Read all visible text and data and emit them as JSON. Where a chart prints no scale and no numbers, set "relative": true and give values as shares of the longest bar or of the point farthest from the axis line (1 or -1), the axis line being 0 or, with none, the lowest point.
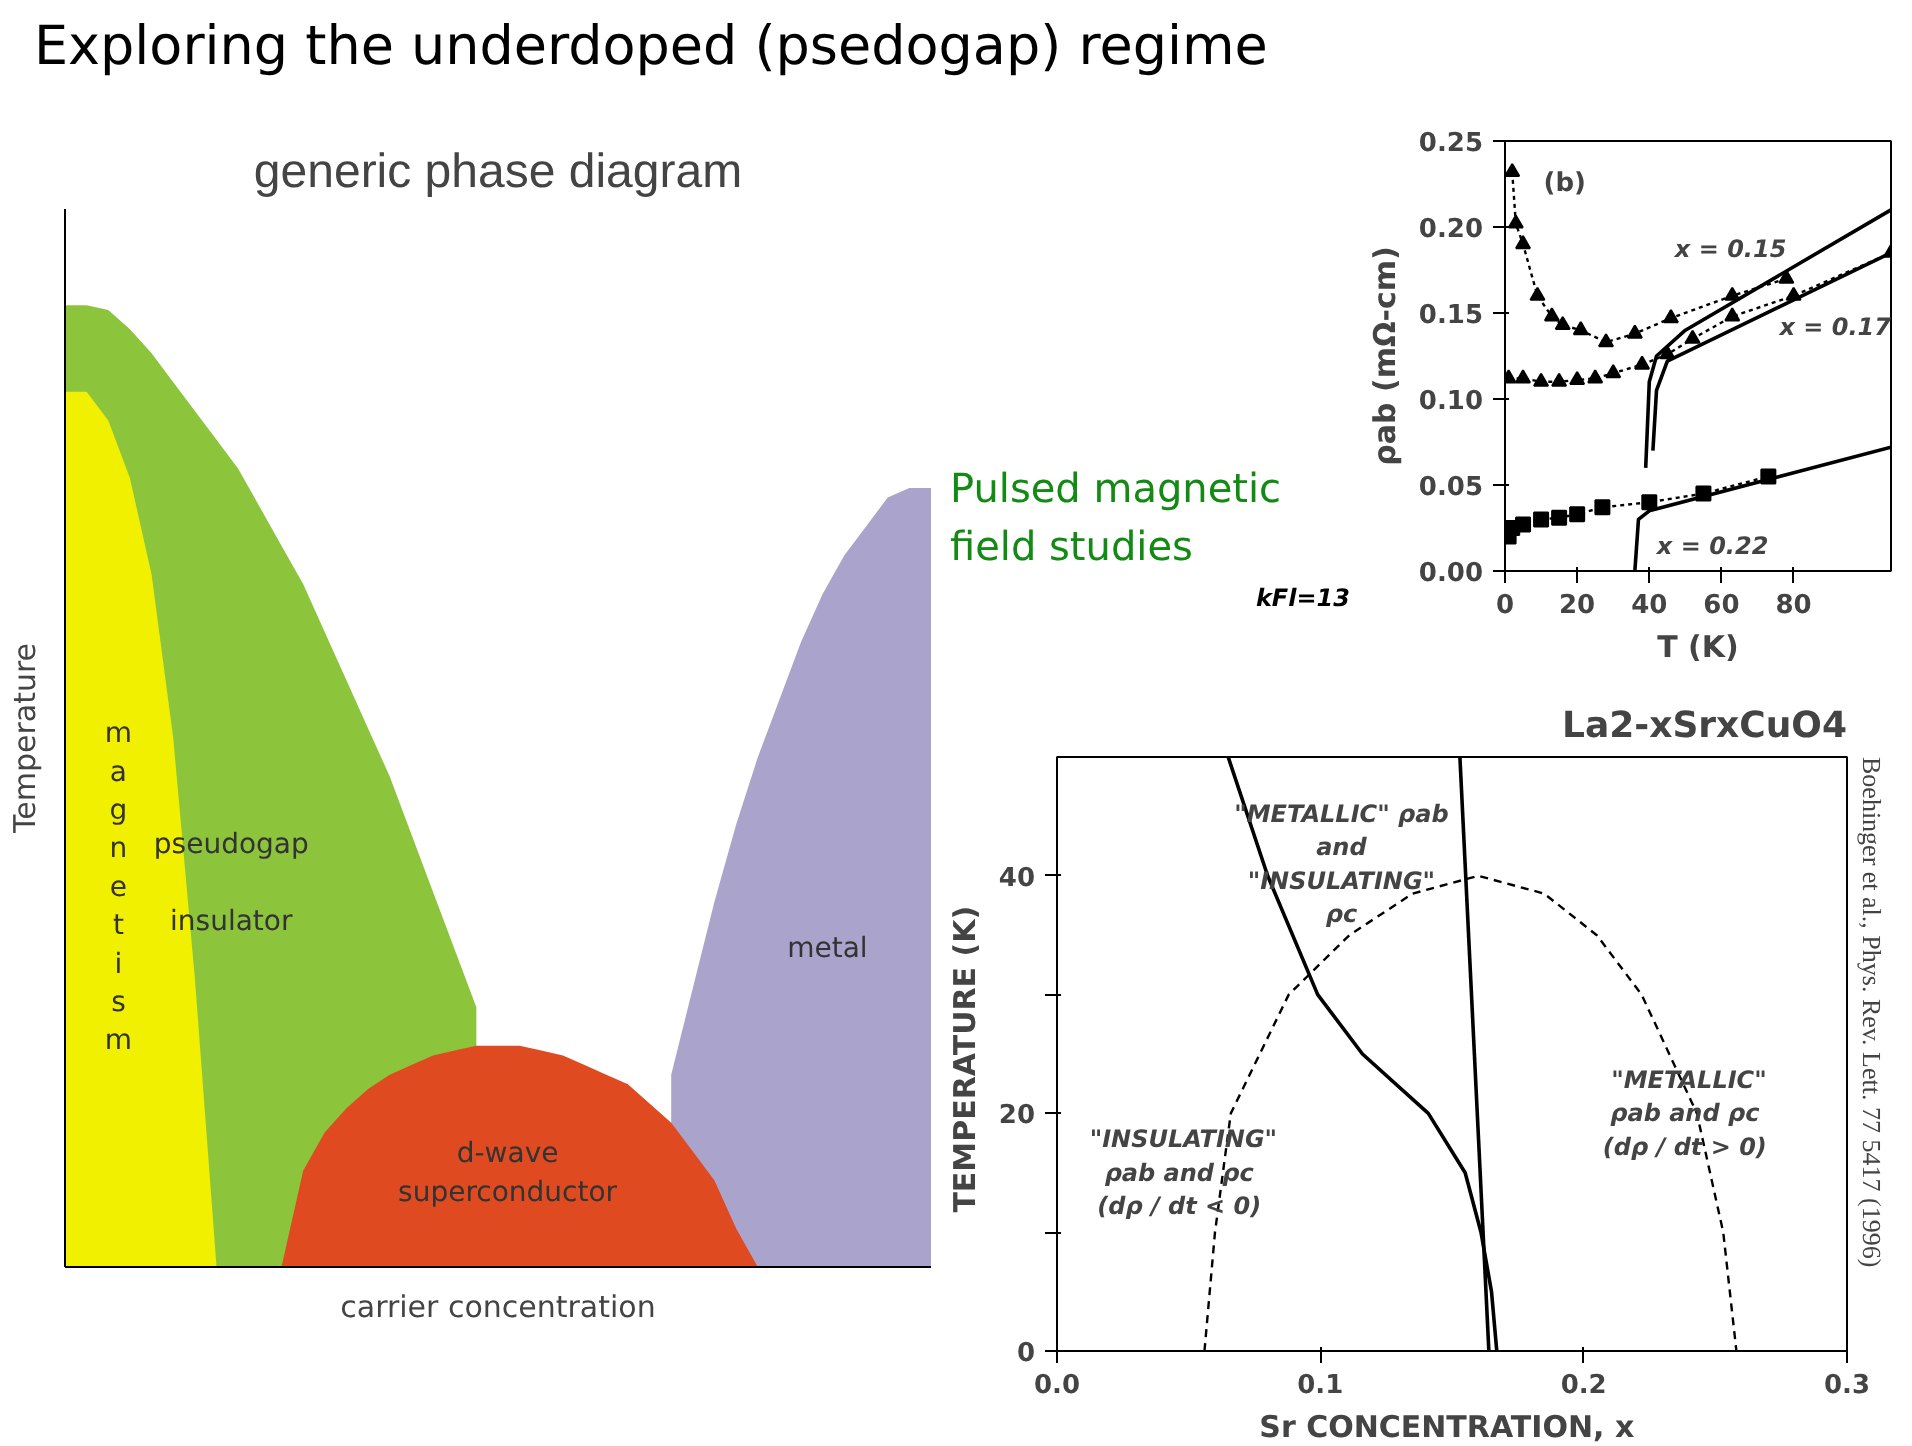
{
  "chart_data": [
    {
      "type": "area",
      "title": "Exploring the underdoped (psedogap) regime",
      "subtitle": "generic phase diagram",
      "xlabel": "carrier concentration",
      "ylabel": "Temperature",
      "relative": true,
      "grid": false,
      "categories": [
        null,
        null,
        null,
        null,
        null,
        null,
        null,
        null,
        null,
        null,
        null,
        null,
        null,
        null,
        null,
        null,
        null,
        null,
        null,
        null,
        null,
        null,
        null,
        null,
        null,
        null,
        null,
        null,
        null,
        null,
        null,
        null,
        null,
        null,
        null,
        null,
        null,
        null,
        null,
        null,
        null
      ],
      "series": [
        {
          "name": "pseudogap\n\ninsulator",
          "color": "#8cc43c",
          "values": [
            1,
            1,
            0.995,
            0.975,
            0.95,
            0.92,
            0.89,
            0.86,
            0.83,
            0.79,
            0.75,
            0.71,
            0.66,
            0.61,
            0.56,
            0.51,
            0.45,
            0.39,
            0.33,
            0.27,
            null,
            null,
            null,
            null,
            null,
            null,
            null,
            null,
            null,
            null,
            null,
            null,
            null,
            null,
            null,
            null,
            null,
            null,
            null,
            null,
            null
          ]
        },
        {
          "name": "magnetism",
          "color": "#f0f000",
          "values": [
            0.91,
            0.91,
            0.88,
            0.82,
            0.72,
            0.55,
            0.3,
            0,
            null,
            null,
            null,
            null,
            null,
            null,
            null,
            null,
            null,
            null,
            null,
            null,
            null,
            null,
            null,
            null,
            null,
            null,
            null,
            null,
            null,
            null,
            null,
            null,
            null,
            null,
            null,
            null,
            null,
            null,
            null,
            null,
            null
          ]
        },
        {
          "name": "metal",
          "color": "#aaa4cc",
          "values": [
            null,
            null,
            null,
            null,
            null,
            null,
            null,
            null,
            null,
            null,
            null,
            null,
            null,
            null,
            null,
            null,
            null,
            null,
            null,
            null,
            null,
            null,
            null,
            null,
            null,
            null,
            null,
            null,
            0.2,
            0.29,
            0.38,
            0.46,
            0.53,
            0.59,
            0.65,
            0.7,
            0.74,
            0.77,
            0.8,
            0.81,
            0.81
          ]
        },
        {
          "name": "d-wave\nsuperconductor",
          "color": "#e04a20",
          "values": [
            null,
            null,
            null,
            null,
            null,
            null,
            null,
            null,
            null,
            null,
            0,
            0.1,
            0.14,
            0.165,
            0.185,
            0.2,
            0.21,
            0.22,
            0.225,
            0.23,
            0.23,
            0.23,
            0.225,
            0.22,
            0.21,
            0.2,
            0.19,
            0.17,
            0.15,
            0.12,
            0.09,
            0.04,
            0,
            null,
            null,
            null,
            null,
            null,
            null,
            null,
            null
          ]
        }
      ]
    },
    {
      "type": "line",
      "xlabel": "T (K)",
      "ylabel": "ρab (mΩ-cm)",
      "xlim": [
        0,
        107
      ],
      "ylim": [
        0,
        0.25
      ],
      "xticks": [
        0,
        20,
        40,
        60,
        80
      ],
      "yticks": [
        {
          "value": 0,
          "label": "0.00"
        },
        0.05,
        {
          "value": 0.1,
          "label": "0.10"
        },
        0.15,
        {
          "value": 0.2,
          "label": "0.20"
        },
        0.25
      ],
      "grid": false,
      "series": [
        {
          "name": "x = 0.15",
          "color": "#000000",
          "marker": "triangle",
          "line_style": "dotted",
          "x": [
            2,
            3,
            5,
            9,
            13,
            16,
            21,
            28,
            36,
            46,
            63,
            78
          ],
          "values": [
            0.232,
            0.202,
            0.19,
            0.16,
            0.148,
            0.143,
            0.14,
            0.133,
            0.138,
            0.147,
            0.16,
            0.17
          ]
        },
        {
          "name": "x = 0.17",
          "color": "#000000",
          "marker": "triangle",
          "line_style": "dotted",
          "x": [
            1,
            5,
            10,
            15,
            20,
            25,
            30,
            38,
            45,
            52,
            63,
            80,
            107
          ],
          "values": [
            0.112,
            0.112,
            0.11,
            0.11,
            0.111,
            0.112,
            0.115,
            0.12,
            0.126,
            0.135,
            0.148,
            0.16,
            0.185
          ]
        },
        {
          "name": "x = 0.22",
          "color": "#000000",
          "marker": "square",
          "line_style": "dotted",
          "x": [
            1,
            2,
            5,
            10,
            15,
            20,
            27,
            40,
            55,
            73
          ],
          "values": [
            0.02,
            0.025,
            0.027,
            0.03,
            0.031,
            0.033,
            0.037,
            0.04,
            0.045,
            0.055
          ]
        },
        {
          "color": "#000000",
          "line_style": "solid",
          "x": [
            39,
            40,
            42,
            50,
            107
          ],
          "values": [
            0.06,
            0.11,
            0.125,
            0.14,
            0.21
          ]
        },
        {
          "color": "#000000",
          "line_style": "solid",
          "x": [
            41,
            42,
            45,
            107
          ],
          "values": [
            0.07,
            0.105,
            0.122,
            0.185
          ]
        },
        {
          "color": "#000000",
          "line_style": "solid",
          "x": [
            36,
            37,
            40,
            107
          ],
          "values": [
            0,
            0.03,
            0.035,
            0.072
          ]
        }
      ],
      "annotations": [
        "Pulsed magnetic field studies",
        "(b)",
        "kFl=13"
      ]
    },
    {
      "type": "line",
      "title": "La2-xSrxCuO4",
      "xlabel": "Sr  CONCENTRATION, x",
      "ylabel": "TEMPERATURE  (K)",
      "xlim": [
        0,
        0.3
      ],
      "ylim": [
        0,
        50
      ],
      "xticks": [
        {
          "value": 0,
          "label": "0.0"
        },
        0.1,
        0.2,
        0.3
      ],
      "yticks": [
        0,
        {
          "value": 10,
          "label": null
        },
        20,
        {
          "value": 30,
          "label": null
        },
        40
      ],
      "grid": false,
      "series": [
        {
          "color": "#000000",
          "line_style": "solid",
          "x": [
            0.065,
            0.08,
            0.099,
            0.116,
            0.141,
            0.155,
            0.161,
            0.165,
            0.167
          ],
          "values": [
            50,
            40,
            30,
            25,
            20,
            15,
            10,
            5,
            0
          ]
        },
        {
          "color": "#000000",
          "line_style": "solid",
          "x": [
            0.153,
            0.164
          ],
          "values": [
            50,
            0
          ]
        },
        {
          "color": "#000000",
          "line_style": "dashed",
          "x": [
            0.056,
            0.06,
            0.066,
            0.088,
            0.111,
            0.135,
            0.16,
            0.185,
            0.205,
            0.222,
            0.243,
            0.253,
            0.258
          ],
          "values": [
            0,
            10,
            20,
            30,
            35,
            38.5,
            40,
            38.5,
            35,
            30,
            20,
            10,
            0
          ]
        }
      ],
      "annotations": [
        "Boehinger et al., Phys. Rev. Lett. 77 5417 (1996)",
        "\"METALLIC\" ρab\nand\n\"INSULATING\"\nρc",
        "\"INSULATING\"\nρab and  ρc\n(dρ / dt  < 0)",
        "\"METALLIC\"\nρab and  ρc\n(dρ / dt  > 0)"
      ]
    }
  ]
}
